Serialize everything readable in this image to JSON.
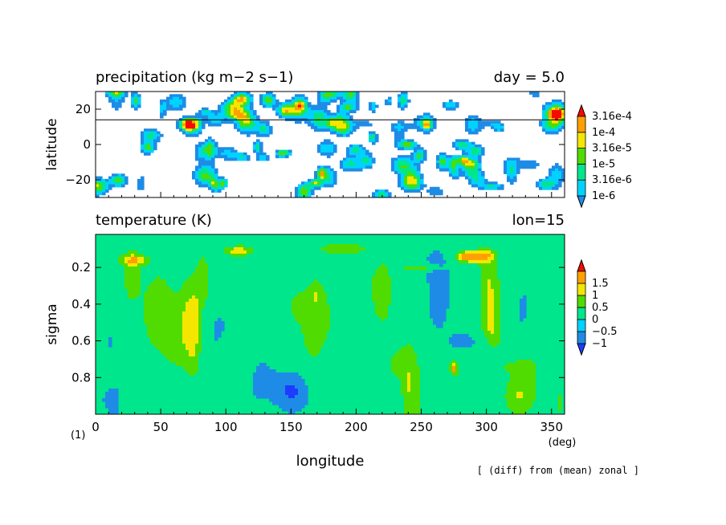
{
  "figure_number": "(1)",
  "footer_note": "[ (diff) from (mean) zonal ]",
  "x_axis": {
    "label": "longitude",
    "unit": "(deg)",
    "ticks": [
      0,
      50,
      100,
      150,
      200,
      250,
      300,
      350
    ],
    "range": [
      0,
      360
    ]
  },
  "chart_data": [
    {
      "type": "heatmap",
      "title": "precipitation (kg m−2 s−1)",
      "right_title": "day = 5.0",
      "xlabel": "",
      "ylabel": "latitude",
      "xlim": [
        0,
        360
      ],
      "ylim": [
        -30,
        30
      ],
      "yticks": [
        -20,
        0,
        20
      ],
      "reference_line_latitude": 14,
      "scale": "log",
      "colorbar": {
        "levels": [
          "1e-6",
          "3.16e-6",
          "1e-5",
          "3.16e-5",
          "1e-4",
          "3.16e-4"
        ],
        "colors": [
          "#1e8ce6",
          "#00d2ff",
          "#00e68c",
          "#50dc00",
          "#f5e600",
          "#ffa000",
          "#f50a00"
        ]
      },
      "field_note": "sparse patchy precipitation cells scattered across the tropics, values from about 1e-6 to above 3.16e-4"
    },
    {
      "type": "heatmap",
      "title": "temperature (K)",
      "right_title": "lon=15",
      "xlabel": "longitude",
      "ylabel": "sigma",
      "xlim": [
        0,
        360
      ],
      "ylim": [
        1.0,
        0.02
      ],
      "yticks": [
        0.2,
        0.4,
        0.6,
        0.8
      ],
      "colorbar": {
        "levels": [
          "−1",
          "−0.5",
          "0",
          "0.5",
          "1",
          "1.5"
        ],
        "colors": [
          "#1e3cff",
          "#1e8ce6",
          "#00d2ff",
          "#00e68c",
          "#50dc00",
          "#f5e600",
          "#ffa000",
          "#f50a00"
        ]
      },
      "field_note": "deviation from zonal mean; strongest warm anomalies near sigma 0.1-0.2 around longitudes 270-320, mostly between -1 and 1 elsewhere"
    }
  ]
}
